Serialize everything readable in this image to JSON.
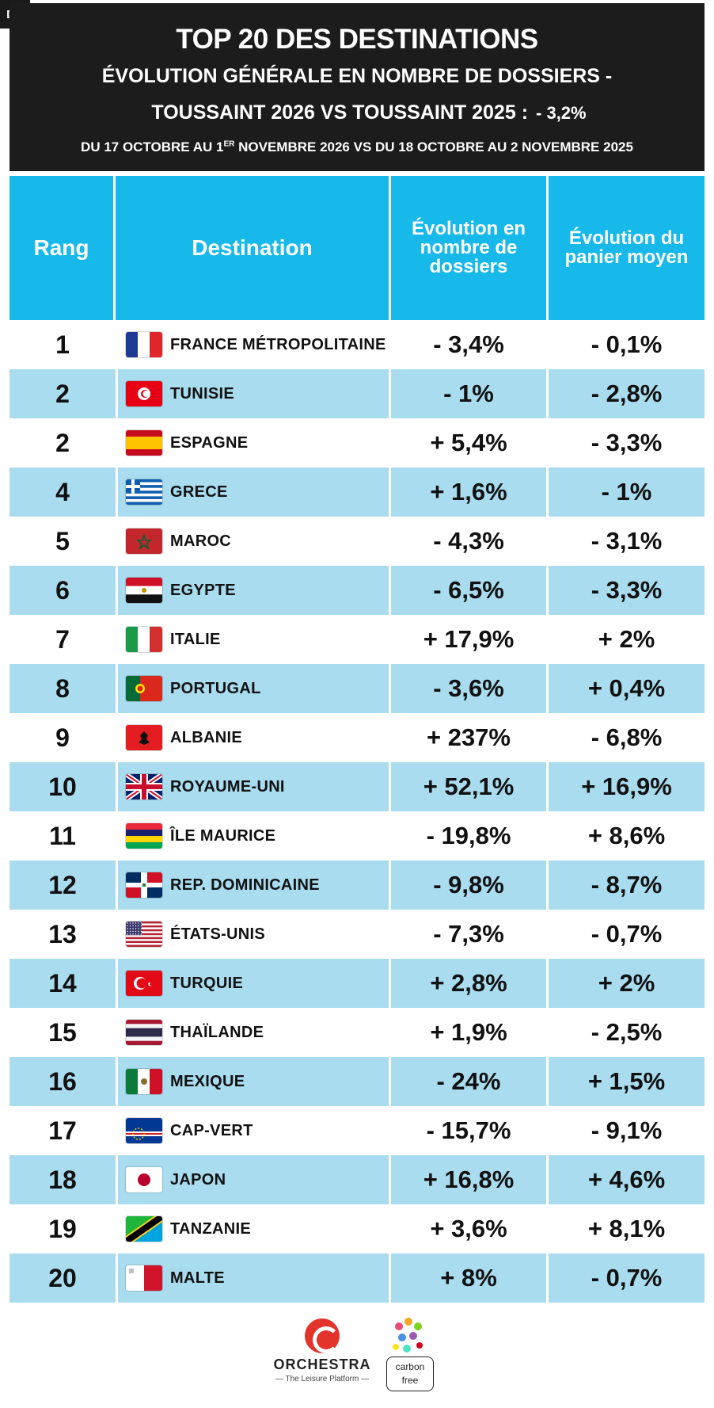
{
  "corner_tag": "DU",
  "header": {
    "title": "TOP 20 DES DESTINATIONS",
    "subtitle_line1": "ÉVOLUTION GÉNÉRALE EN NOMBRE DE DOSSIERS -",
    "subtitle_line2": "TOUSSAINT 2026 VS TOUSSAINT 2025 :",
    "overall_change": "- 3,2%",
    "dates_part1": "DU 17 OCTOBRE AU 1",
    "dates_sup": "ER",
    "dates_part2": " NOVEMBRE 2026 VS  DU 18 OCTOBRE AU 2 NOVEMBRE 2025"
  },
  "columns": {
    "rank": "Rang",
    "destination": "Destination",
    "dossiers": "Évolution en nombre de dossiers",
    "panier": "Évolution du panier moyen"
  },
  "rows": [
    {
      "rank": "1",
      "destination": "FRANCE MÉTROPOLITAINE",
      "flag": "fr",
      "dossiers": "- 3,4%",
      "panier": "- 0,1%"
    },
    {
      "rank": "2",
      "destination": "TUNISIE",
      "flag": "tn",
      "dossiers": "- 1%",
      "panier": "- 2,8%"
    },
    {
      "rank": "2",
      "destination": "ESPAGNE",
      "flag": "es",
      "dossiers": "+ 5,4%",
      "panier": "- 3,3%"
    },
    {
      "rank": "4",
      "destination": "GRECE",
      "flag": "gr",
      "dossiers": "+ 1,6%",
      "panier": "- 1%"
    },
    {
      "rank": "5",
      "destination": "MAROC",
      "flag": "ma",
      "dossiers": "- 4,3%",
      "panier": "- 3,1%"
    },
    {
      "rank": "6",
      "destination": "EGYPTE",
      "flag": "eg",
      "dossiers": "- 6,5%",
      "panier": "- 3,3%"
    },
    {
      "rank": "7",
      "destination": "ITALIE",
      "flag": "it",
      "dossiers": "+ 17,9%",
      "panier": "+ 2%"
    },
    {
      "rank": "8",
      "destination": "PORTUGAL",
      "flag": "pt",
      "dossiers": "- 3,6%",
      "panier": "+ 0,4%"
    },
    {
      "rank": "9",
      "destination": "ALBANIE",
      "flag": "al",
      "dossiers": "+ 237%",
      "panier": "- 6,8%"
    },
    {
      "rank": "10",
      "destination": "ROYAUME-UNI",
      "flag": "gb",
      "dossiers": "+ 52,1%",
      "panier": "+ 16,9%"
    },
    {
      "rank": "11",
      "destination": "ÎLE MAURICE",
      "flag": "mu",
      "dossiers": "- 19,8%",
      "panier": "+ 8,6%"
    },
    {
      "rank": "12",
      "destination": "REP. DOMINICAINE",
      "flag": "do",
      "dossiers": "- 9,8%",
      "panier": "- 8,7%"
    },
    {
      "rank": "13",
      "destination": "ÉTATS-UNIS",
      "flag": "us",
      "dossiers": "- 7,3%",
      "panier": "- 0,7%"
    },
    {
      "rank": "14",
      "destination": "TURQUIE",
      "flag": "tr",
      "dossiers": "+ 2,8%",
      "panier": "+ 2%"
    },
    {
      "rank": "15",
      "destination": "THAÏLANDE",
      "flag": "th",
      "dossiers": "+ 1,9%",
      "panier": "- 2,5%"
    },
    {
      "rank": "16",
      "destination": "MEXIQUE",
      "flag": "mx",
      "dossiers": "- 24%",
      "panier": "+ 1,5%"
    },
    {
      "rank": "17",
      "destination": "CAP-VERT",
      "flag": "cv",
      "dossiers": "- 15,7%",
      "panier": "- 9,1%"
    },
    {
      "rank": "18",
      "destination": "JAPON",
      "flag": "jp",
      "dossiers": "+ 16,8%",
      "panier": "+ 4,6%"
    },
    {
      "rank": "19",
      "destination": "TANZANIE",
      "flag": "tz",
      "dossiers": "+ 3,6%",
      "panier": "+ 8,1%"
    },
    {
      "rank": "20",
      "destination": "MALTE",
      "flag": "mt",
      "dossiers": "+ 8%",
      "panier": "- 0,7%"
    }
  ],
  "footer": {
    "brand": "ORCHESTRA",
    "tagline": "— The Leisure Platform —",
    "carbon_label_1": "carbon",
    "carbon_label_2": "free"
  },
  "colors": {
    "header_bg": "#1c1c1c",
    "table_header_bg": "#16b9ea",
    "row_alt_bg": "#a9dcef",
    "brand_red": "#e2342b"
  }
}
